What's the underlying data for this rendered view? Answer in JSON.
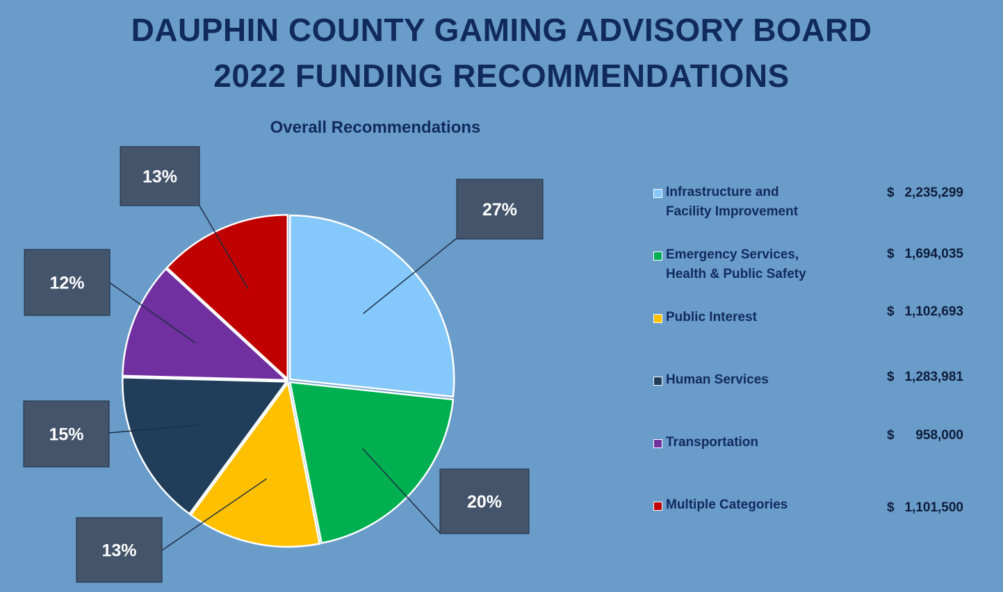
{
  "header": {
    "title_line1": "DAUPHIN COUNTY GAMING ADVISORY BOARD",
    "title_line2": "2022 FUNDING RECOMMENDATIONS"
  },
  "chart_data": {
    "type": "pie",
    "title": "Overall Recommendations",
    "slices": [
      {
        "label": "Infrastructure and\nFacility Improvement",
        "value": 2235299,
        "amount": "2,235,299",
        "percent_label": "27%",
        "color": "#85c8fb"
      },
      {
        "label": "Emergency Services,\nHealth & Public Safety",
        "value": 1694035,
        "amount": "1,694,035",
        "percent_label": "20%",
        "color": "#00b050"
      },
      {
        "label": "Public Interest",
        "value": 1102693,
        "amount": "1,102,693",
        "percent_label": "13%",
        "color": "#ffc000"
      },
      {
        "label": "Human Services",
        "value": 1283981,
        "amount": "1,283,981",
        "percent_label": "15%",
        "color": "#203d5a"
      },
      {
        "label": "Transportation",
        "value": 958000,
        "amount": "958,000",
        "percent_label": "12%",
        "color": "#7030a0"
      },
      {
        "label": "Multiple Categories",
        "value": 1101500,
        "amount": "1,101,500",
        "percent_label": "13%",
        "color": "#c00000"
      }
    ],
    "currency_symbol": "$",
    "legend_position": "right"
  }
}
